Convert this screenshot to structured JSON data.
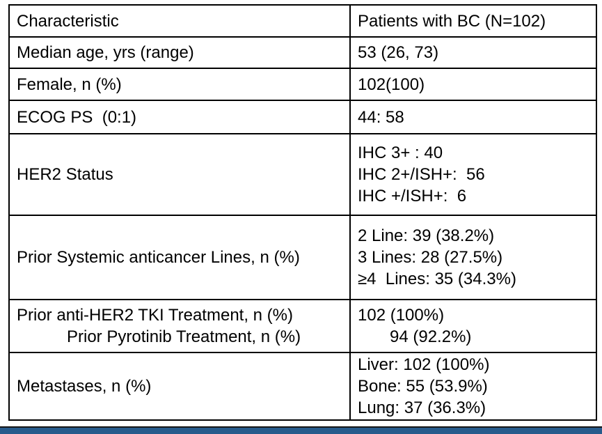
{
  "colors": {
    "background": "#FFFFFF",
    "table_border": "#000000",
    "text": "#000000",
    "accent_bar": "#275B8C"
  },
  "table": {
    "header": {
      "characteristic": "Characteristic",
      "value": "Patients with BC (N=102)"
    },
    "rows": [
      {
        "label_lines": [
          "Median age, yrs (range)"
        ],
        "value_lines": [
          "53 (26, 73)"
        ]
      },
      {
        "label_lines": [
          "Female, n (%)"
        ],
        "value_lines": [
          "102(100)"
        ]
      },
      {
        "label_lines": [
          "ECOG PS  (0:1)"
        ],
        "value_lines": [
          "44: 58"
        ]
      },
      {
        "label_lines": [
          "HER2 Status"
        ],
        "value_lines": [
          "IHC 3+ : 40",
          "IHC 2+/ISH+:  56",
          "IHC +/ISH+:  6"
        ]
      },
      {
        "label_lines": [
          "Prior Systemic anticancer Lines, n (%)"
        ],
        "value_lines": [
          "2 Line: 39 (38.2%)",
          "3 Lines: 28 (27.5%)",
          "≥4  Lines: 35 (34.3%)"
        ]
      },
      {
        "label_lines": [
          "Prior anti-HER2 TKI Treatment, n (%)",
          "Prior Pyrotinib Treatment, n (%)"
        ],
        "value_lines": [
          "102 (100%)",
          "94 (92.2%)"
        ]
      },
      {
        "label_lines": [
          "Metastases, n (%)"
        ],
        "value_lines": [
          "Liver: 102 (100%)",
          "Bone: 55 (53.9%)",
          "Lung: 37 (36.3%)"
        ]
      }
    ]
  }
}
